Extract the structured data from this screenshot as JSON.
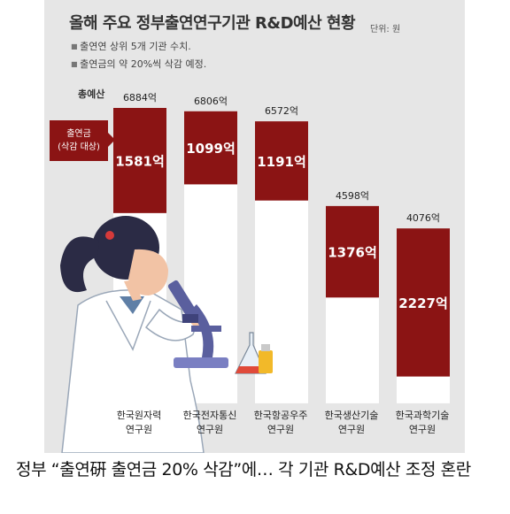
{
  "header": {
    "title": "올해 주요 정부출연연구기관 R&D예산 현황",
    "unit": "단위: 원",
    "notes": [
      "출연연 상위 5개 기관 수치.",
      "출연금의 약 20%씩 삭감 예정."
    ]
  },
  "legend": {
    "total_label": "총예산",
    "contribution_line1": "출연금",
    "contribution_line2": "(삭감 대상)"
  },
  "chart_data": {
    "type": "bar",
    "title": "올해 주요 정부출연연구기관 R&D예산 현황",
    "unit": "원",
    "categories": [
      [
        "한국원자력",
        "연구원"
      ],
      [
        "한국전자통신",
        "연구원"
      ],
      [
        "한국항공우주",
        "연구원"
      ],
      [
        "한국생산기술",
        "연구원"
      ],
      [
        "한국과학기술",
        "연구원"
      ]
    ],
    "series": [
      {
        "name": "총예산",
        "values": [
          6884,
          6806,
          6572,
          4598,
          4076
        ],
        "labels": [
          "6884억",
          "6806억",
          "6572억",
          "4598억",
          "4076억"
        ]
      },
      {
        "name": "출연금",
        "values": [
          1581,
          1099,
          1191,
          1376,
          2227
        ],
        "labels": [
          "1581억",
          "1099억",
          "1191억",
          "1376억",
          "2227억"
        ]
      }
    ],
    "colors": {
      "total": "#ffffff",
      "contribution": "#8b1414"
    }
  },
  "illustration": {
    "name": "scientist-with-microscope"
  },
  "caption": "정부 “출연硏 출연금 20% 삭감”에… 각 기관 R&D예산 조정 혼란"
}
